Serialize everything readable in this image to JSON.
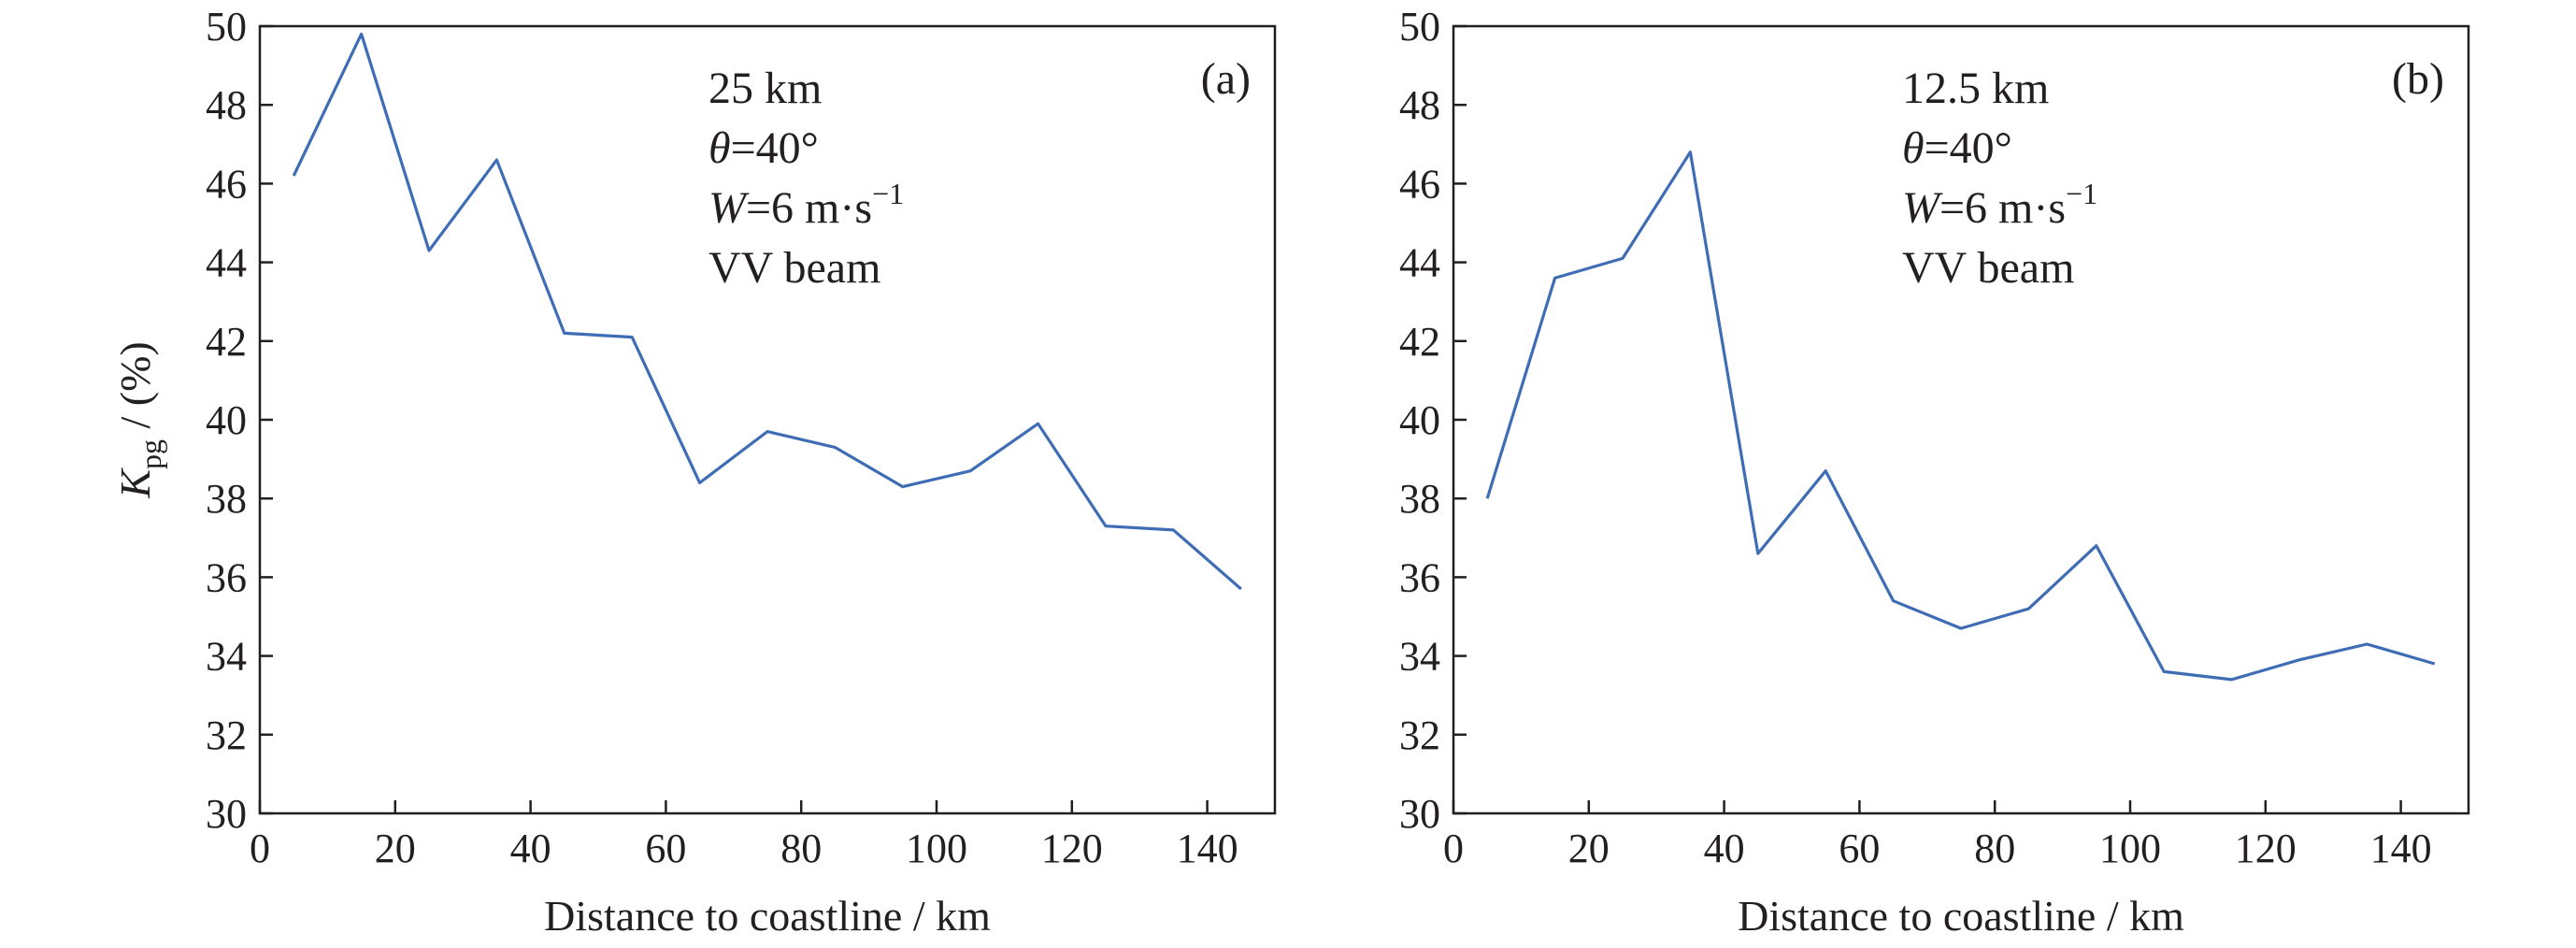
{
  "chart_data": [
    {
      "type": "line",
      "panel_label": "(a)",
      "annotations": [
        "25 km",
        "θ=40°",
        "W=6 m·s⁻¹",
        "VV beam"
      ],
      "xlabel": "Distance to coastline / km",
      "ylabel": "Kpg / (%)",
      "xlim": [
        0,
        150
      ],
      "ylim": [
        30,
        50
      ],
      "xticks": [
        0,
        20,
        40,
        60,
        80,
        100,
        120,
        140
      ],
      "yticks": [
        30,
        32,
        34,
        36,
        38,
        40,
        42,
        44,
        46,
        48,
        50
      ],
      "grid": false,
      "x": [
        5,
        15,
        25,
        35,
        45,
        55,
        65,
        75,
        85,
        95,
        105,
        115,
        125,
        135,
        145
      ],
      "series": [
        {
          "values": [
            46.2,
            49.8,
            44.3,
            46.6,
            42.2,
            42.1,
            38.4,
            39.7,
            39.3,
            38.3,
            38.7,
            39.9,
            37.3,
            37.2,
            35.7
          ]
        }
      ],
      "line_color": "#3e6db5"
    },
    {
      "type": "line",
      "panel_label": "(b)",
      "annotations": [
        "12.5 km",
        "θ=40°",
        "W=6 m·s⁻¹",
        "VV beam"
      ],
      "xlabel": "Distance to coastline / km",
      "ylabel": "",
      "xlim": [
        0,
        150
      ],
      "ylim": [
        30,
        50
      ],
      "xticks": [
        0,
        20,
        40,
        60,
        80,
        100,
        120,
        140
      ],
      "yticks": [
        30,
        32,
        34,
        36,
        38,
        40,
        42,
        44,
        46,
        48,
        50
      ],
      "grid": false,
      "x": [
        5,
        15,
        25,
        35,
        45,
        55,
        65,
        75,
        85,
        95,
        105,
        115,
        125,
        135,
        145
      ],
      "series": [
        {
          "values": [
            38.0,
            43.6,
            44.1,
            46.8,
            36.6,
            38.7,
            35.4,
            34.7,
            35.2,
            36.8,
            33.6,
            33.4,
            33.9,
            34.3,
            33.8
          ]
        }
      ],
      "line_color": "#3e6db5"
    }
  ]
}
